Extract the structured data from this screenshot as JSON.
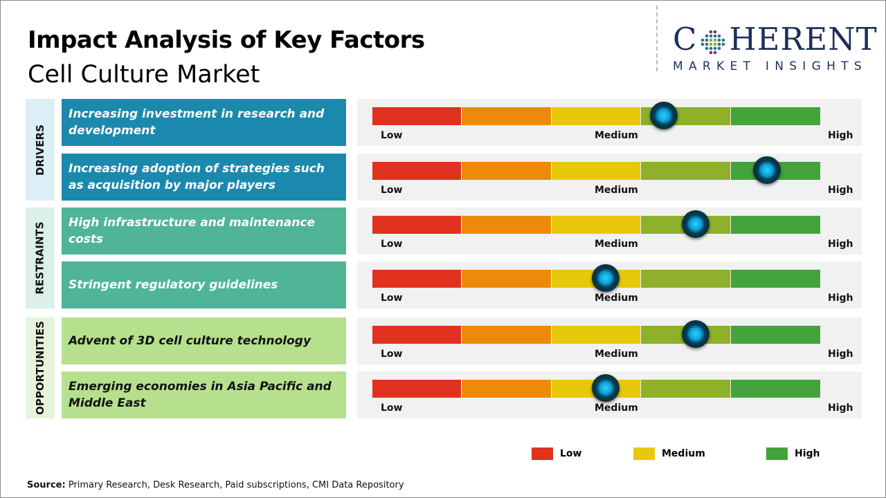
{
  "title": "Impact Analysis of Key Factors",
  "subtitle": "Cell Culture Market",
  "logo": {
    "name": "COHERENT",
    "tagline": "MARKET INSIGHTS"
  },
  "source": {
    "label": "Source:",
    "text": " Primary Research, Desk Research, Paid subscriptions, CMI Data Repository"
  },
  "scale_labels": {
    "low": "Low",
    "medium": "Medium",
    "high": "High"
  },
  "segment_colors": [
    "#e0321f",
    "#ee8a0a",
    "#e8c80a",
    "#8eb02a",
    "#43a43c"
  ],
  "categories": [
    {
      "label": "DRIVERS",
      "bg": "#dceff7",
      "factor_bg": "#1b89ad",
      "text_color": "#ffffff"
    },
    {
      "label": "RESTRAINTS",
      "bg": "#dcefe9",
      "factor_bg": "#4fb596",
      "text_color": "#ffffff"
    },
    {
      "label": "OPPORTUNITIES",
      "bg": "#e6f4dc",
      "factor_bg": "#b6e08d",
      "text_color": "#111111"
    }
  ],
  "chart_data": {
    "type": "gauge-bar",
    "scale": [
      "Low",
      "Medium",
      "High"
    ],
    "range": [
      0,
      1
    ],
    "factors": [
      {
        "category": "DRIVERS",
        "label": "Increasing investment in research and development",
        "impact": 0.65
      },
      {
        "category": "DRIVERS",
        "label": "Increasing adoption of strategies such as acquisition by major players",
        "impact": 0.88
      },
      {
        "category": "RESTRAINTS",
        "label": "High infrastructure  and maintenance costs",
        "impact": 0.72
      },
      {
        "category": "RESTRAINTS",
        "label": "Stringent regulatory  guidelines",
        "impact": 0.52
      },
      {
        "category": "OPPORTUNITIES",
        "label": "Advent of 3D cell culture technology",
        "impact": 0.72
      },
      {
        "category": "OPPORTUNITIES",
        "label": "Emerging economies in Asia Pacific and Middle East",
        "impact": 0.52
      }
    ],
    "legend": [
      {
        "label": "Low",
        "color": "#e0321f"
      },
      {
        "label": "Medium",
        "color": "#e8c80a"
      },
      {
        "label": "High",
        "color": "#43a43c"
      }
    ]
  }
}
